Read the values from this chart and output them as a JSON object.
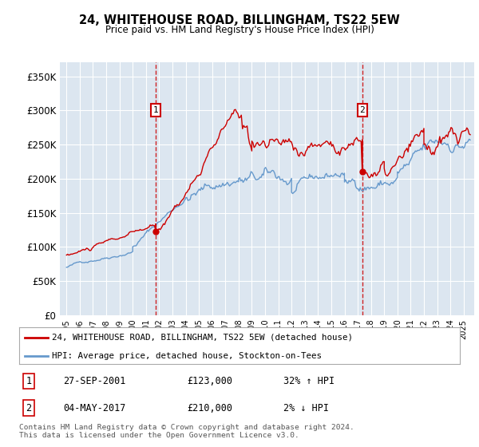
{
  "title": "24, WHITEHOUSE ROAD, BILLINGHAM, TS22 5EW",
  "subtitle": "Price paid vs. HM Land Registry's House Price Index (HPI)",
  "plot_bg_color": "#dce6f0",
  "red_line_color": "#cc0000",
  "blue_line_color": "#6699cc",
  "ylim": [
    0,
    370000
  ],
  "yticks": [
    0,
    50000,
    100000,
    150000,
    200000,
    250000,
    300000,
    350000
  ],
  "ytick_labels": [
    "£0",
    "£50K",
    "£100K",
    "£150K",
    "£200K",
    "£250K",
    "£300K",
    "£350K"
  ],
  "sale1_date": 2001.74,
  "sale1_price": 123000,
  "sale1_label": "1",
  "sale2_date": 2017.34,
  "sale2_price": 210000,
  "sale2_label": "2",
  "legend_line1": "24, WHITEHOUSE ROAD, BILLINGHAM, TS22 5EW (detached house)",
  "legend_line2": "HPI: Average price, detached house, Stockton-on-Tees",
  "table_row1_num": "1",
  "table_row1_date": "27-SEP-2001",
  "table_row1_price": "£123,000",
  "table_row1_hpi": "32% ↑ HPI",
  "table_row2_num": "2",
  "table_row2_date": "04-MAY-2017",
  "table_row2_price": "£210,000",
  "table_row2_hpi": "2% ↓ HPI",
  "footer": "Contains HM Land Registry data © Crown copyright and database right 2024.\nThis data is licensed under the Open Government Licence v3.0."
}
